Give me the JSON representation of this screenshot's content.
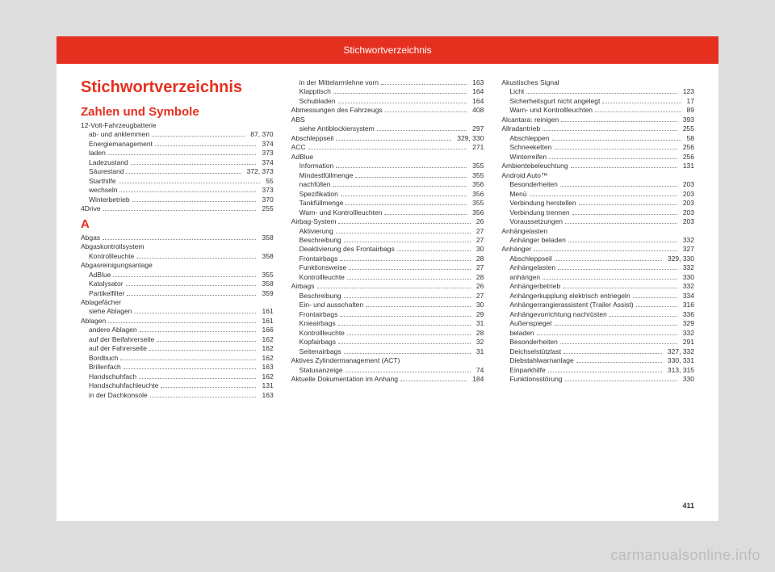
{
  "header": "Stichwortverzeichnis",
  "mainTitle": "Stichwortverzeichnis",
  "pageNum": "411",
  "watermark": "carmanualsonline.info",
  "columns": [
    {
      "blocks": [
        {
          "type": "section",
          "text": "Zahlen und Symbole"
        },
        {
          "type": "head",
          "text": "12-Volt-Fahrzeugbatterie"
        },
        {
          "type": "sub",
          "label": "ab- und anklemmen",
          "page": "87, 370"
        },
        {
          "type": "sub",
          "label": "Energiemanagement",
          "page": "374"
        },
        {
          "type": "sub",
          "label": "laden",
          "page": "373"
        },
        {
          "type": "sub",
          "label": "Ladezustand",
          "page": "374"
        },
        {
          "type": "sub",
          "label": "Säurestand",
          "page": "372, 373"
        },
        {
          "type": "sub",
          "label": "Starthilfe",
          "page": "55"
        },
        {
          "type": "sub",
          "label": "wechseln",
          "page": "373"
        },
        {
          "type": "sub",
          "label": "Winterbetrieb",
          "page": "370"
        },
        {
          "type": "entry",
          "label": "4Drive",
          "page": "255"
        },
        {
          "type": "section",
          "text": "A"
        },
        {
          "type": "entry",
          "label": "Abgas",
          "page": "358"
        },
        {
          "type": "head",
          "text": "Abgaskontrollsystem"
        },
        {
          "type": "sub",
          "label": "Kontrollleuchte",
          "page": "358"
        },
        {
          "type": "head",
          "text": "Abgasreinigungsanlage"
        },
        {
          "type": "sub",
          "label": "AdBlue",
          "page": "355"
        },
        {
          "type": "sub",
          "label": "Katalysator",
          "page": "358"
        },
        {
          "type": "sub",
          "label": "Partikelfilter",
          "page": "359"
        },
        {
          "type": "head",
          "text": "Ablagefächer"
        },
        {
          "type": "sub",
          "label": "siehe Ablagen",
          "page": "161"
        },
        {
          "type": "entry",
          "label": "Ablagen",
          "page": "161"
        },
        {
          "type": "sub",
          "label": "andere Ablagen",
          "page": "166"
        },
        {
          "type": "sub",
          "label": "auf der Beifahrerseite",
          "page": "162"
        },
        {
          "type": "sub",
          "label": "auf der Fahrerseite",
          "page": "162"
        },
        {
          "type": "sub",
          "label": "Bordbuch",
          "page": "162"
        },
        {
          "type": "sub",
          "label": "Brillenfach",
          "page": "163"
        },
        {
          "type": "sub",
          "label": "Handschuhfach",
          "page": "162"
        },
        {
          "type": "sub",
          "label": "Handschuhfachleuchte",
          "page": "131"
        },
        {
          "type": "sub",
          "label": "in der Dachkonsole",
          "page": "163"
        }
      ]
    },
    {
      "blocks": [
        {
          "type": "sub",
          "label": "in der Mittelarmlehne vorn",
          "page": "163"
        },
        {
          "type": "sub",
          "label": "Klapptisch",
          "page": "164"
        },
        {
          "type": "sub",
          "label": "Schubladen",
          "page": "164"
        },
        {
          "type": "entry",
          "label": "Abmessungen des Fahrzeugs",
          "page": "408"
        },
        {
          "type": "head",
          "text": "ABS"
        },
        {
          "type": "sub",
          "label": "siehe Antiblockiersystem",
          "page": "297"
        },
        {
          "type": "entry",
          "label": "Abschleppseil",
          "page": "329, 330"
        },
        {
          "type": "entry",
          "label": "ACC",
          "page": "271"
        },
        {
          "type": "head",
          "text": "AdBlue"
        },
        {
          "type": "sub",
          "label": "Information",
          "page": "355"
        },
        {
          "type": "sub",
          "label": "Mindestfüllmenge",
          "page": "355"
        },
        {
          "type": "sub",
          "label": "nachfüllen",
          "page": "356"
        },
        {
          "type": "sub",
          "label": "Spezifikation",
          "page": "356"
        },
        {
          "type": "sub",
          "label": "Tankfüllmenge",
          "page": "355"
        },
        {
          "type": "sub",
          "label": "Warn- und Kontrollleuchten",
          "page": "356"
        },
        {
          "type": "entry",
          "label": "Airbag-System",
          "page": "26"
        },
        {
          "type": "sub",
          "label": "Aktivierung",
          "page": "27"
        },
        {
          "type": "sub",
          "label": "Beschreibung",
          "page": "27"
        },
        {
          "type": "sub",
          "label": "Deaktivierung des Frontairbags",
          "page": "30"
        },
        {
          "type": "sub",
          "label": "Frontairbags",
          "page": "28"
        },
        {
          "type": "sub",
          "label": "Funktionsweise",
          "page": "27"
        },
        {
          "type": "sub",
          "label": "Kontrollleuchte",
          "page": "28"
        },
        {
          "type": "entry",
          "label": "Airbags",
          "page": "26"
        },
        {
          "type": "sub",
          "label": "Beschreibung",
          "page": "27"
        },
        {
          "type": "sub",
          "label": "Ein- und ausschalten",
          "page": "30"
        },
        {
          "type": "sub",
          "label": "Frontairbags",
          "page": "29"
        },
        {
          "type": "sub",
          "label": "Knieairbags",
          "page": "31"
        },
        {
          "type": "sub",
          "label": "Kontrollleuchte",
          "page": "28"
        },
        {
          "type": "sub",
          "label": "Kopfairbags",
          "page": "32"
        },
        {
          "type": "sub",
          "label": "Seitenairbags",
          "page": "31"
        },
        {
          "type": "head",
          "text": "Aktives Zylindermanagement (ACT)"
        },
        {
          "type": "sub",
          "label": "Statusanzeige",
          "page": "74"
        },
        {
          "type": "entry",
          "label": "Aktuelle Dokumentation im Anhang",
          "page": "184"
        }
      ]
    },
    {
      "blocks": [
        {
          "type": "head",
          "text": "Akustisches Signal"
        },
        {
          "type": "sub",
          "label": "Licht",
          "page": "123"
        },
        {
          "type": "sub",
          "label": "Sicherheitsgurt nicht angelegt",
          "page": "17"
        },
        {
          "type": "sub",
          "label": "Warn- und Kontrollleuchten",
          "page": "89"
        },
        {
          "type": "entry",
          "label": "Alcantara: reinigen",
          "page": "393"
        },
        {
          "type": "entry",
          "label": "Allradantrieb",
          "page": "255"
        },
        {
          "type": "sub",
          "label": "Abschleppen",
          "page": "58"
        },
        {
          "type": "sub",
          "label": "Schneeketten",
          "page": "256"
        },
        {
          "type": "sub",
          "label": "Winterreifen",
          "page": "256"
        },
        {
          "type": "entry",
          "label": "Ambientebeleuchtung",
          "page": "131"
        },
        {
          "type": "head",
          "text": "Android Auto™"
        },
        {
          "type": "sub",
          "label": "Besonderheiten",
          "page": "203"
        },
        {
          "type": "sub",
          "label": "Menü",
          "page": "203"
        },
        {
          "type": "sub",
          "label": "Verbindung herstellen",
          "page": "203"
        },
        {
          "type": "sub",
          "label": "Verbindung trennen",
          "page": "203"
        },
        {
          "type": "sub",
          "label": "Voraussetzungen",
          "page": "203"
        },
        {
          "type": "head",
          "text": "Anhängelasten"
        },
        {
          "type": "sub",
          "label": "Anhänger beladen",
          "page": "332"
        },
        {
          "type": "entry",
          "label": "Anhänger",
          "page": "327"
        },
        {
          "type": "sub",
          "label": "Abschleppseil",
          "page": "329, 330"
        },
        {
          "type": "sub",
          "label": "Anhängelasten",
          "page": "332"
        },
        {
          "type": "sub",
          "label": "anhängen",
          "page": "330"
        },
        {
          "type": "sub",
          "label": "Anhängerbetrieb",
          "page": "332"
        },
        {
          "type": "sub",
          "label": "Anhängerkupplung elektrisch entriegeln",
          "page": "334"
        },
        {
          "type": "sub",
          "label": "Anhängerrangierassistent (Trailer Assist)",
          "page": "316"
        },
        {
          "type": "sub",
          "label": "Anhängevorrichtung nachrüsten",
          "page": "336"
        },
        {
          "type": "sub",
          "label": "Außenspiegel",
          "page": "329"
        },
        {
          "type": "sub",
          "label": "beladen",
          "page": "332"
        },
        {
          "type": "sub",
          "label": "Besonderheiten",
          "page": "291"
        },
        {
          "type": "sub",
          "label": "Deichselstützlast",
          "page": "327, 332"
        },
        {
          "type": "sub",
          "label": "Diebstahlwarnanlage",
          "page": "330, 331"
        },
        {
          "type": "sub",
          "label": "Einparkhilfe",
          "page": "313, 315"
        },
        {
          "type": "sub",
          "label": "Funktionsstörung",
          "page": "330"
        }
      ]
    }
  ]
}
